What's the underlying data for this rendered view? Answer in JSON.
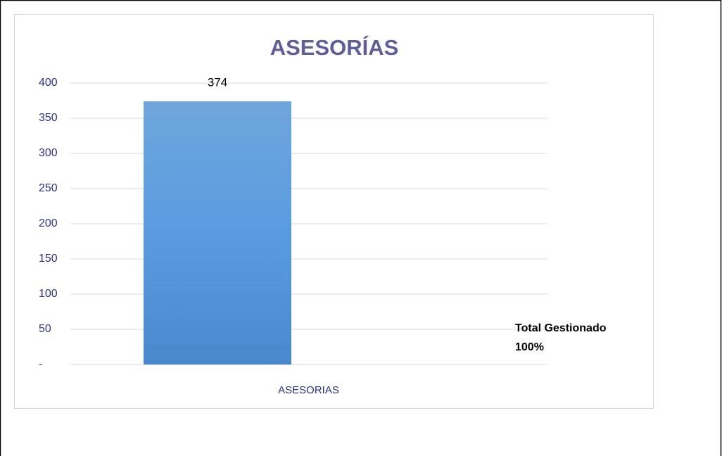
{
  "chart_data": {
    "type": "bar",
    "title": "ASESORÍAS",
    "categories": [
      "ASESORIAS"
    ],
    "values": [
      374
    ],
    "color": "#5b9bd5",
    "ylim": [
      0,
      400
    ],
    "yticks": [
      {
        "value": 0,
        "label": "-"
      },
      50,
      100,
      150,
      200,
      250,
      300,
      350,
      400
    ],
    "grid": true,
    "annotations": [
      "Total Gestionado",
      "100%"
    ]
  }
}
